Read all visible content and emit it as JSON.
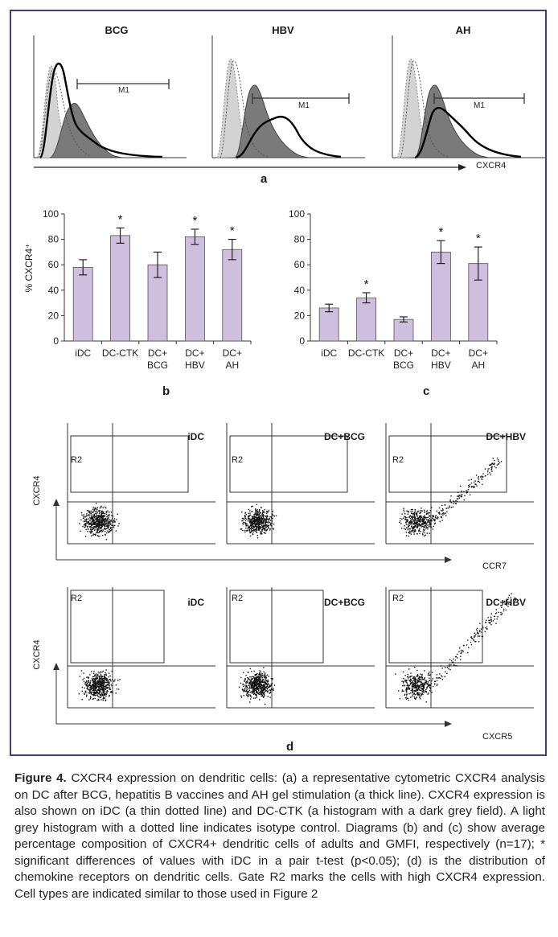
{
  "panel_a": {
    "histograms": [
      {
        "title": "BCG",
        "gate": "M1"
      },
      {
        "title": "HBV",
        "gate": "M1"
      },
      {
        "title": "AH",
        "gate": "M1"
      }
    ],
    "axis_label": "CXCR4",
    "letter": "a"
  },
  "bar_charts": {
    "ylabel": "% CXCR4⁺"
  },
  "chart_data": [
    {
      "type": "bar",
      "letter": "b",
      "categories": [
        "iDC",
        "DC-CTK",
        "DC+\nBCG",
        "DC+\nHBV",
        "DC+\nAH"
      ],
      "category_lines": [
        [
          "iDC"
        ],
        [
          "DC-CTK"
        ],
        [
          "DC+",
          "BCG"
        ],
        [
          "DC+",
          "HBV"
        ],
        [
          "DC+",
          "AH"
        ]
      ],
      "values": [
        58,
        83,
        60,
        82,
        72
      ],
      "errors": [
        6,
        6,
        10,
        6,
        8
      ],
      "significant": [
        false,
        true,
        false,
        true,
        true
      ],
      "ylim": [
        0,
        100
      ],
      "yticks": [
        0,
        20,
        40,
        60,
        80,
        100
      ],
      "ylabel": "% CXCR4⁺",
      "bar_color": "#cdbfdd"
    },
    {
      "type": "bar",
      "letter": "c",
      "categories": [
        "iDC",
        "DC-CTK",
        "DC+\nBCG",
        "DC+\nHBV",
        "DC+\nAH"
      ],
      "category_lines": [
        [
          "iDC"
        ],
        [
          "DC-CTK"
        ],
        [
          "DC+",
          "BCG"
        ],
        [
          "DC+",
          "HBV"
        ],
        [
          "DC+",
          "AH"
        ]
      ],
      "values": [
        26,
        34,
        17,
        70,
        61
      ],
      "errors": [
        3,
        4,
        2,
        9,
        13
      ],
      "significant": [
        false,
        true,
        false,
        true,
        true
      ],
      "ylim": [
        0,
        100
      ],
      "yticks": [
        0,
        20,
        40,
        60,
        80,
        100
      ],
      "bar_color": "#cdbfdd"
    }
  ],
  "panel_d": {
    "row1": {
      "y_axis": "CXCR4",
      "x_axis": "CCR7",
      "plots": [
        {
          "label": "iDC",
          "gate": "R2"
        },
        {
          "label": "DC+BCG",
          "gate": "R2"
        },
        {
          "label": "DC+HBV",
          "gate": "R2"
        }
      ]
    },
    "row2": {
      "y_axis": "CXCR4",
      "x_axis": "CXCR5",
      "plots": [
        {
          "label": "iDC",
          "gate": "R2"
        },
        {
          "label": "DC+BCG",
          "gate": "R2"
        },
        {
          "label": "DC+HBV",
          "gate": "R2"
        }
      ]
    },
    "letter": "d"
  },
  "caption": {
    "label": "Figure 4.",
    "text": " CXCR4 expression on dendritic cells: (a) a representative cytometric CXCR4 analysis on DC after BCG, hepatitis B vaccines and AH gel stimulation (a thick line). CXCR4 expression is also shown on iDC (a thin dotted line) and DC-CTK (a histogram with a dark grey field). A light grey histogram with a dotted line indicates isotype control. Diagrams (b) and (c) show average percentage composition of CXCR4+ dendritic cells of adults and GMFI, respectively (n=17); * significant differences of values with iDC in a pair t-test (p<0.05); (d) is the distribution of chemokine receptors on dendritic cells. Gate R2 marks the cells with high CXCR4 expression. Cell types are indicated similar to those used in Figure 2"
  }
}
